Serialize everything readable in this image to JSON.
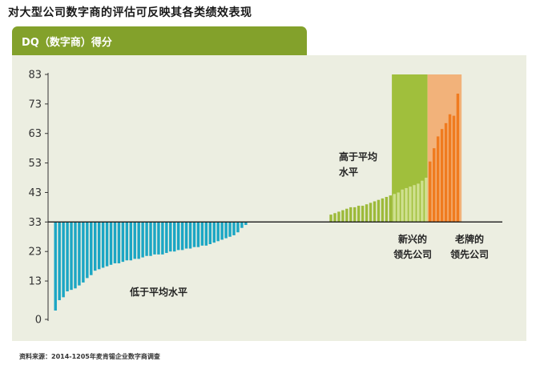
{
  "title": "对大型公司数字商的评估可反映其各类绩效表现",
  "header_label": "DQ（数字商）得分",
  "source": "资料来源：2014-1205年麦肯锡企业数字商调查",
  "colors": {
    "below_average": "#1ba6c4",
    "above_average": "#9dba3a",
    "emerging_leaders_bg": "#a0bf3c",
    "emerging_leaders_bar": "#cfe08f",
    "incumbent_leaders_bg": "#f2b27a",
    "incumbent_leaders_bar": "#f07b1f",
    "panel": "#eceee1",
    "header": "#83a12b"
  },
  "chart_data": {
    "type": "bar",
    "title": "",
    "xlabel": "",
    "ylabel": "DQ（数字商）得分",
    "baseline": 33,
    "ylim": [
      0,
      83
    ],
    "yticks": [
      0,
      13,
      23,
      33,
      43,
      53,
      63,
      73,
      83
    ],
    "annotations": [
      {
        "text": "低于平均水平",
        "group": "below_average"
      },
      {
        "text": "高于平均\n水平",
        "group": "above_average"
      },
      {
        "text": "新兴的\n领先公司",
        "group": "emerging_leaders"
      },
      {
        "text": "老牌的\n领先公司",
        "group": "incumbent_leaders"
      }
    ],
    "groups": [
      {
        "id": "below_average",
        "values": [
          3,
          6.5,
          7.5,
          9.5,
          10,
          10.5,
          11.5,
          12.5,
          14,
          15,
          16.5,
          17,
          17.5,
          18,
          18.5,
          19,
          19,
          19.5,
          20,
          20,
          20.5,
          20.5,
          21,
          21.5,
          21.5,
          22,
          22,
          22,
          22.5,
          23,
          23,
          23.5,
          23.5,
          24,
          24,
          24.5,
          24.5,
          25,
          25,
          25.5,
          26,
          26.5,
          27,
          27.5,
          28,
          28.5,
          29.5,
          31,
          32
        ]
      },
      {
        "id": "above_average",
        "values": [
          35.5,
          36,
          36.5,
          37,
          37.5,
          38,
          38,
          38.5,
          38.5,
          39,
          39.5,
          40,
          40.5,
          41,
          41.5,
          42
        ]
      },
      {
        "id": "emerging_leaders",
        "values": [
          42.5,
          43,
          44,
          44.5,
          45,
          45.5,
          46,
          47,
          48
        ]
      },
      {
        "id": "incumbent_leaders",
        "values": [
          53.5,
          58,
          62,
          64.5,
          66.5,
          69.5,
          69,
          76.5
        ]
      }
    ]
  }
}
